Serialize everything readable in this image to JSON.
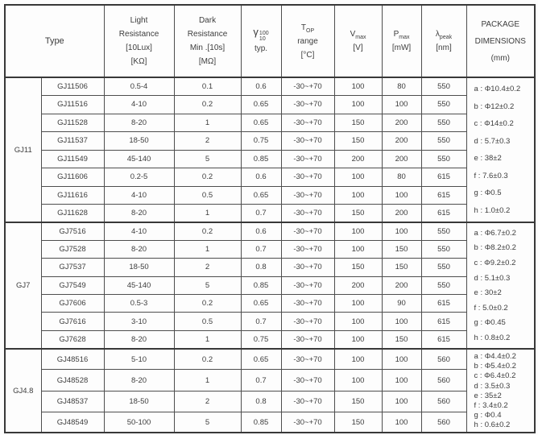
{
  "header": {
    "type": "Type",
    "light": {
      "line1": "Light",
      "line2": "Resistance",
      "line3": "[10Lux]",
      "line4": "[KΩ]"
    },
    "dark": {
      "line1": "Dark",
      "line2": "Resistance",
      "line3": "Min .[10s]",
      "line4": "[MΩ]"
    },
    "gamma": {
      "symbol": "γ",
      "sup": "100",
      "sub": "10",
      "line2": "typ."
    },
    "top": {
      "base": "T",
      "sub": "OP",
      "line2": "range",
      "line3": "[°C]"
    },
    "vmax": {
      "base": "V",
      "sub": "max",
      "line2": "[V]"
    },
    "pmax": {
      "base": "P",
      "sub": "max",
      "line2": "[mW]"
    },
    "lambda": {
      "base": "λ",
      "sub": "peak",
      "line2": "[nm]"
    },
    "package": {
      "line1": "PACKAGE",
      "line2": "DIMENSIONS",
      "line3": "(mm)"
    }
  },
  "groups": [
    {
      "name": "GJ11",
      "rows": [
        {
          "part": "GJ11506",
          "light": "0.5-4",
          "dark": "0.1",
          "gamma": "0.6",
          "top": "-30~+70",
          "vmax": "100",
          "pmax": "80",
          "lambda": "550"
        },
        {
          "part": "GJ11516",
          "light": "4-10",
          "dark": "0.2",
          "gamma": "0.65",
          "top": "-30~+70",
          "vmax": "100",
          "pmax": "100",
          "lambda": "550"
        },
        {
          "part": "GJ11528",
          "light": "8-20",
          "dark": "1",
          "gamma": "0.65",
          "top": "-30~+70",
          "vmax": "150",
          "pmax": "200",
          "lambda": "550"
        },
        {
          "part": "GJ11537",
          "light": "18-50",
          "dark": "2",
          "gamma": "0.75",
          "top": "-30~+70",
          "vmax": "150",
          "pmax": "200",
          "lambda": "550"
        },
        {
          "part": "GJ11549",
          "light": "45-140",
          "dark": "5",
          "gamma": "0.85",
          "top": "-30~+70",
          "vmax": "200",
          "pmax": "200",
          "lambda": "550"
        },
        {
          "part": "GJ11606",
          "light": "0.2-5",
          "dark": "0.2",
          "gamma": "0.6",
          "top": "-30~+70",
          "vmax": "100",
          "pmax": "80",
          "lambda": "615"
        },
        {
          "part": "GJ11616",
          "light": "4-10",
          "dark": "0.5",
          "gamma": "0.65",
          "top": "-30~+70",
          "vmax": "100",
          "pmax": "100",
          "lambda": "615"
        },
        {
          "part": "GJ11628",
          "light": "8-20",
          "dark": "1",
          "gamma": "0.7",
          "top": "-30~+70",
          "vmax": "150",
          "pmax": "200",
          "lambda": "615"
        }
      ],
      "dims": [
        "a : Φ10.4±0.2",
        "b : Φ12±0.2",
        "c : Φ14±0.2",
        "d : 5.7±0.3",
        "e : 38±2",
        "f : 7.6±0.3",
        "g : Φ0.5",
        "h : 1.0±0.2"
      ]
    },
    {
      "name": "GJ7",
      "rows": [
        {
          "part": "GJ7516",
          "light": "4-10",
          "dark": "0.2",
          "gamma": "0.6",
          "top": "-30~+70",
          "vmax": "100",
          "pmax": "100",
          "lambda": "550"
        },
        {
          "part": "GJ7528",
          "light": "8-20",
          "dark": "1",
          "gamma": "0.7",
          "top": "-30~+70",
          "vmax": "100",
          "pmax": "150",
          "lambda": "550"
        },
        {
          "part": "GJ7537",
          "light": "18-50",
          "dark": "2",
          "gamma": "0.8",
          "top": "-30~+70",
          "vmax": "150",
          "pmax": "150",
          "lambda": "550"
        },
        {
          "part": "GJ7549",
          "light": "45-140",
          "dark": "5",
          "gamma": "0.85",
          "top": "-30~+70",
          "vmax": "200",
          "pmax": "200",
          "lambda": "550"
        },
        {
          "part": "GJ7606",
          "light": "0.5-3",
          "dark": "0.2",
          "gamma": "0.65",
          "top": "-30~+70",
          "vmax": "100",
          "pmax": "90",
          "lambda": "615"
        },
        {
          "part": "GJ7616",
          "light": "3-10",
          "dark": "0.5",
          "gamma": "0.7",
          "top": "-30~+70",
          "vmax": "100",
          "pmax": "100",
          "lambda": "615"
        },
        {
          "part": "GJ7628",
          "light": "8-20",
          "dark": "1",
          "gamma": "0.75",
          "top": "-30~+70",
          "vmax": "100",
          "pmax": "150",
          "lambda": "615"
        }
      ],
      "dims": [
        "a : Φ6.7±0.2",
        "b : Φ8.2±0.2",
        "c : Φ9.2±0.2",
        "d : 5.1±0.3",
        "e : 30±2",
        "f : 5.0±0.2",
        "g : Φ0.45",
        "h : 0.8±0.2"
      ]
    },
    {
      "name": "GJ4.8",
      "rows": [
        {
          "part": "GJ48516",
          "light": "5-10",
          "dark": "0.2",
          "gamma": "0.65",
          "top": "-30~+70",
          "vmax": "100",
          "pmax": "100",
          "lambda": "560"
        },
        {
          "part": "GJ48528",
          "light": "8-20",
          "dark": "1",
          "gamma": "0.7",
          "top": "-30~+70",
          "vmax": "100",
          "pmax": "100",
          "lambda": "560"
        },
        {
          "part": "GJ48537",
          "light": "18-50",
          "dark": "2",
          "gamma": "0.8",
          "top": "-30~+70",
          "vmax": "150",
          "pmax": "100",
          "lambda": "560"
        },
        {
          "part": "GJ48549",
          "light": "50-100",
          "dark": "5",
          "gamma": "0.85",
          "top": "-30~+70",
          "vmax": "150",
          "pmax": "100",
          "lambda": "560"
        }
      ],
      "dims": [
        "a : Φ4.4±0.2",
        "b : Φ5.4±0.2",
        "c : Φ6.4±0.2",
        "d : 3.5±0.3",
        "e : 35±2",
        "f : 3.4±0.2",
        "g : Φ0.4",
        "h : 0.6±0.2"
      ]
    }
  ]
}
